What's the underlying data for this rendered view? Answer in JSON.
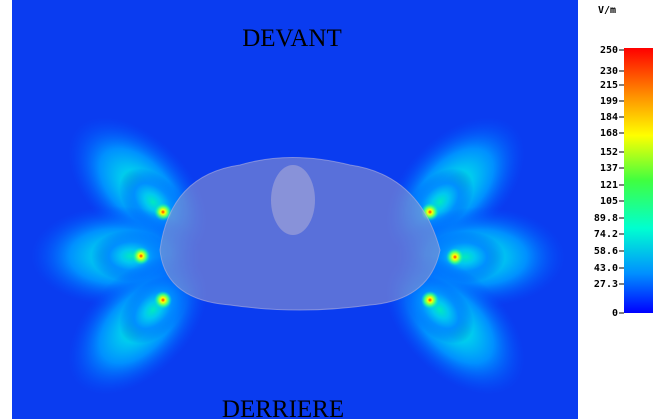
{
  "labels": {
    "top": "DEVANT",
    "bottom": "DERRIERE"
  },
  "colorbar": {
    "unit": "V/m",
    "ticks": [
      "250",
      "230",
      "215",
      "199",
      "184",
      "168",
      "152",
      "137",
      "121",
      "105",
      "89.8",
      "74.2",
      "58.6",
      "43.0",
      "27.3",
      "0"
    ]
  }
}
